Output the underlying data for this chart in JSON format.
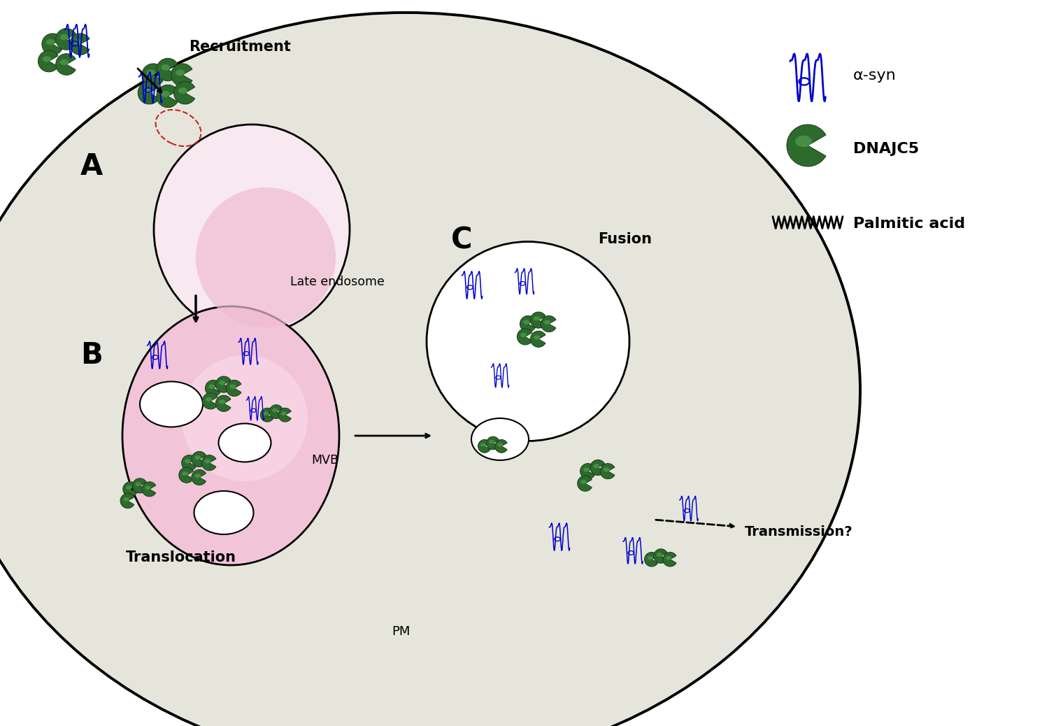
{
  "bg_color": "#e5e5db",
  "white_bg": "#ffffff",
  "pink_endo": "#f5d0e0",
  "pink_mvb": "#f0c0d0",
  "green_dark": "#2d6b2d",
  "green_highlight": "#60b060",
  "blue_color": "#0000cc",
  "black": "#000000",
  "red_circle": "#cc2222",
  "label_A": "A",
  "label_B": "B",
  "label_C": "C",
  "text_recruitment": "Recruitment",
  "text_late_endosome": "Late endosome",
  "text_MVB": "MVB",
  "text_translocation": "Translocation",
  "text_fusion": "Fusion",
  "text_transmission": "Transmission?",
  "text_PM": "PM",
  "legend_asyn": "α-syn",
  "legend_dnajc5": "DNAJC5",
  "legend_palmitic": "Palmitic acid"
}
